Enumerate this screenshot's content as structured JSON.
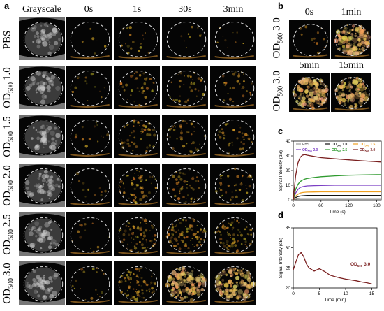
{
  "panel_a": {
    "label": "a",
    "col_headers": [
      "Grayscale",
      "0s",
      "1s",
      "30s",
      "3min"
    ],
    "rows": [
      {
        "main": "PBS",
        "sub": "",
        "val": "",
        "level": [
          0.0,
          0.0,
          0.08,
          0.02,
          0.02
        ]
      },
      {
        "main": "OD",
        "sub": "500",
        "val": "1.0",
        "level": [
          0.0,
          0.05,
          0.25,
          0.2,
          0.18
        ]
      },
      {
        "main": "OD",
        "sub": "500",
        "val": "1.5",
        "level": [
          0.0,
          0.05,
          0.3,
          0.25,
          0.2
        ]
      },
      {
        "main": "OD",
        "sub": "500",
        "val": "2.0",
        "level": [
          0.0,
          0.05,
          0.4,
          0.3,
          0.25
        ]
      },
      {
        "main": "OD",
        "sub": "500",
        "val": "2.5",
        "level": [
          0.0,
          0.05,
          0.45,
          0.55,
          0.5
        ]
      },
      {
        "main": "OD",
        "sub": "500",
        "val": "3.0",
        "level": [
          0.0,
          0.08,
          0.55,
          0.95,
          0.9
        ]
      }
    ]
  },
  "panel_b": {
    "label": "b",
    "row_labels": [
      {
        "main": "OD",
        "sub": "500",
        "val": "3.0"
      },
      {
        "main": "OD",
        "sub": "500",
        "val": "3.0"
      }
    ],
    "tiles": [
      {
        "title": "0s",
        "level": 0.05
      },
      {
        "title": "1min",
        "level": 1.0
      },
      {
        "title": "5min",
        "level": 0.9
      },
      {
        "title": "15min",
        "level": 0.75
      }
    ]
  },
  "panel_c": {
    "label": "c",
    "legend": [
      {
        "name": "PBS",
        "color": "#9a9a9a"
      },
      {
        "name_main": "OD",
        "name_sub": "500",
        "name_val": "1.0",
        "color": "#111111"
      },
      {
        "name_main": "OD",
        "name_sub": "500",
        "name_val": "1.5",
        "color": "#f0a020"
      },
      {
        "name_main": "OD",
        "name_sub": "500",
        "name_val": "2.0",
        "color": "#7b3fc4"
      },
      {
        "name_main": "OD",
        "name_sub": "500",
        "name_val": "2.5",
        "color": "#2e9a2e"
      },
      {
        "name_main": "OD",
        "name_sub": "500",
        "name_val": "3.0",
        "color": "#7a1f1f"
      }
    ]
  },
  "panel_d": {
    "label": "d",
    "annotation_main": "OD",
    "annotation_sub": "500",
    "annotation_val": "3.0"
  },
  "chart_data": [
    {
      "type": "line",
      "panel": "c",
      "xlabel": "Time (s)",
      "ylabel": "Signal Intensity (dB)",
      "xlim": [
        0,
        190
      ],
      "ylim": [
        0,
        40
      ],
      "xticks": [
        0,
        60,
        120,
        180
      ],
      "yticks": [
        0,
        10,
        20,
        30,
        40
      ],
      "x": [
        0,
        5,
        10,
        15,
        20,
        25,
        30,
        45,
        60,
        90,
        120,
        150,
        180,
        190
      ],
      "series": [
        {
          "name": "PBS",
          "color": "#9a9a9a",
          "values": [
            0,
            0.5,
            0.8,
            1.0,
            1.0,
            1.0,
            1.0,
            1.0,
            1.0,
            1.0,
            1.0,
            1.0,
            1.0,
            1.0
          ]
        },
        {
          "name": "OD500 1.0",
          "color": "#111111",
          "values": [
            0,
            1.5,
            2.3,
            2.6,
            2.8,
            2.9,
            3.0,
            3.0,
            3.0,
            3.0,
            3.0,
            3.0,
            3.0,
            3.0
          ]
        },
        {
          "name": "OD500 1.5",
          "color": "#f0a020",
          "values": [
            0,
            2.5,
            3.8,
            4.6,
            5.0,
            5.2,
            5.3,
            5.4,
            5.5,
            5.5,
            5.5,
            5.5,
            5.5,
            5.5
          ]
        },
        {
          "name": "OD500 2.0",
          "color": "#7b3fc4",
          "values": [
            0,
            4.5,
            7.0,
            8.5,
            9.0,
            9.3,
            9.5,
            9.7,
            9.8,
            10.0,
            10.0,
            10.0,
            10.0,
            10.0
          ]
        },
        {
          "name": "OD500 2.5",
          "color": "#2e9a2e",
          "values": [
            0,
            7.0,
            10.5,
            12.5,
            13.5,
            14.2,
            14.6,
            15.3,
            15.8,
            16.4,
            16.8,
            17.0,
            17.2,
            17.2
          ]
        },
        {
          "name": "OD500 3.0",
          "color": "#7a1f1f",
          "values": [
            0,
            16,
            25,
            29,
            30.5,
            30.8,
            30.5,
            29.6,
            28.8,
            28.0,
            27.3,
            26.6,
            26.0,
            25.8
          ]
        }
      ]
    },
    {
      "type": "line",
      "panel": "d",
      "xlabel": "Time (min)",
      "ylabel": "Signal Intensity (dB)",
      "xlim": [
        0,
        16
      ],
      "ylim": [
        20,
        35
      ],
      "xticks": [
        0,
        5,
        10,
        15
      ],
      "yticks": [
        20,
        25,
        30,
        35
      ],
      "x": [
        0,
        0.5,
        1,
        1.5,
        2,
        2.5,
        3,
        4,
        5,
        6,
        7,
        8,
        9,
        10,
        11,
        12,
        13,
        14,
        15
      ],
      "series": [
        {
          "name": "OD500 3.0",
          "color": "#7a1f1f",
          "values": [
            24.5,
            26.5,
            28.3,
            28.8,
            27.8,
            26.0,
            25.0,
            24.2,
            24.8,
            24.1,
            23.2,
            22.8,
            22.5,
            22.2,
            22.0,
            21.8,
            21.5,
            21.3,
            21.0
          ]
        }
      ]
    }
  ]
}
